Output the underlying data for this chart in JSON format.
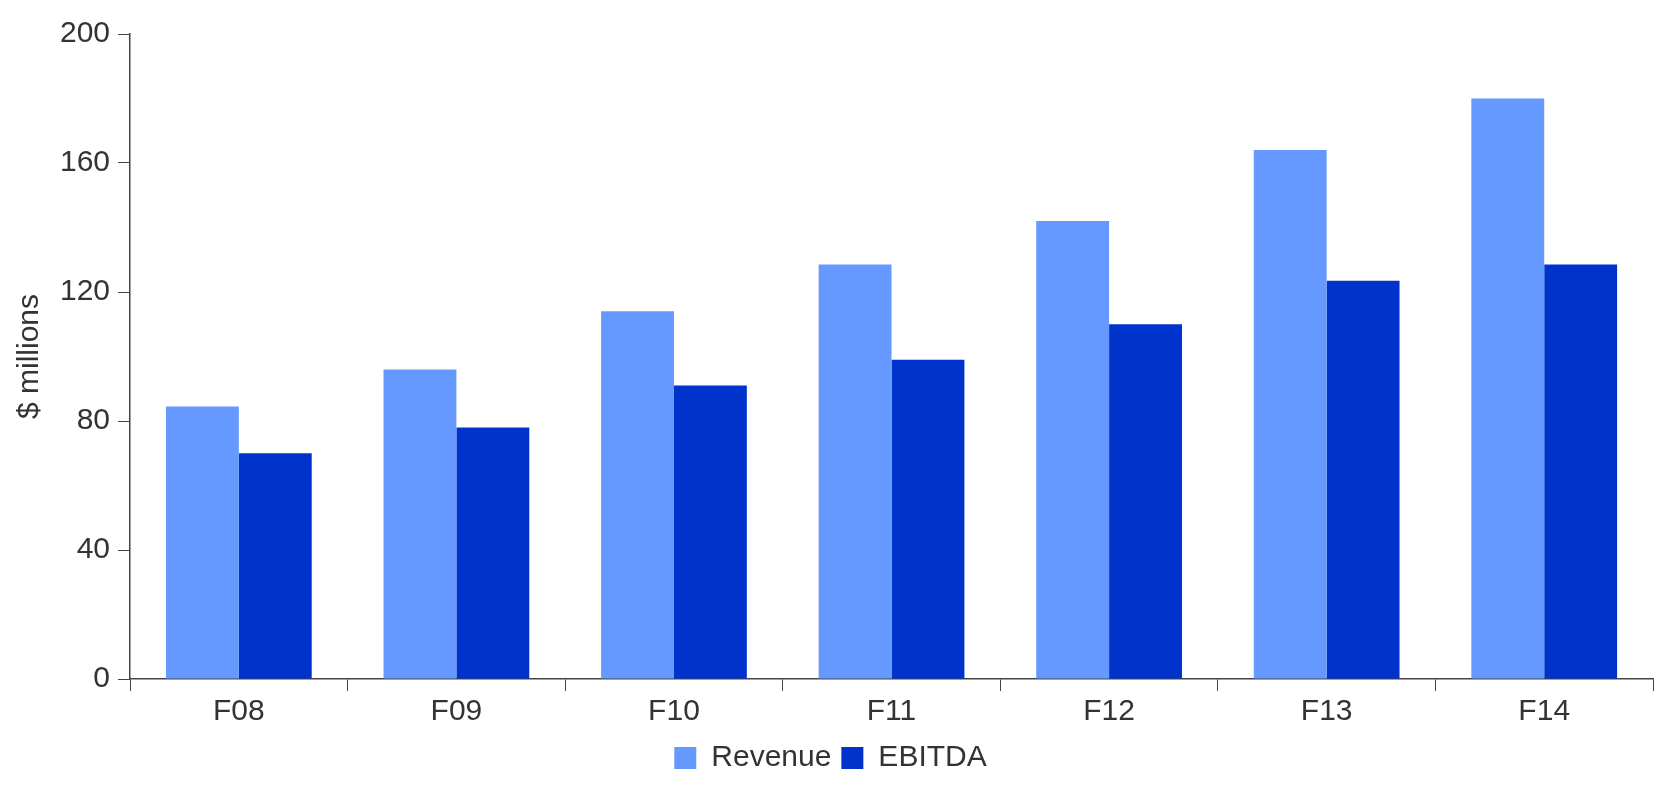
{
  "chart_data": {
    "type": "bar",
    "ylabel": "$ millions",
    "categories": [
      "F08",
      "F09",
      "F10",
      "F11",
      "F12",
      "F13",
      "F14"
    ],
    "series": [
      {
        "name": "Revenue",
        "color": "#6699ff",
        "values": [
          84.5,
          96,
          114,
          128.5,
          142,
          164,
          180
        ]
      },
      {
        "name": "EBITDA",
        "color": "#0033cc",
        "values": [
          70,
          78,
          91,
          99,
          110,
          123.5,
          128.5
        ]
      }
    ],
    "ylim": [
      0,
      200
    ],
    "yticks": [
      0,
      40,
      80,
      120,
      160,
      200
    ],
    "grid": false,
    "legend": "bottom"
  }
}
